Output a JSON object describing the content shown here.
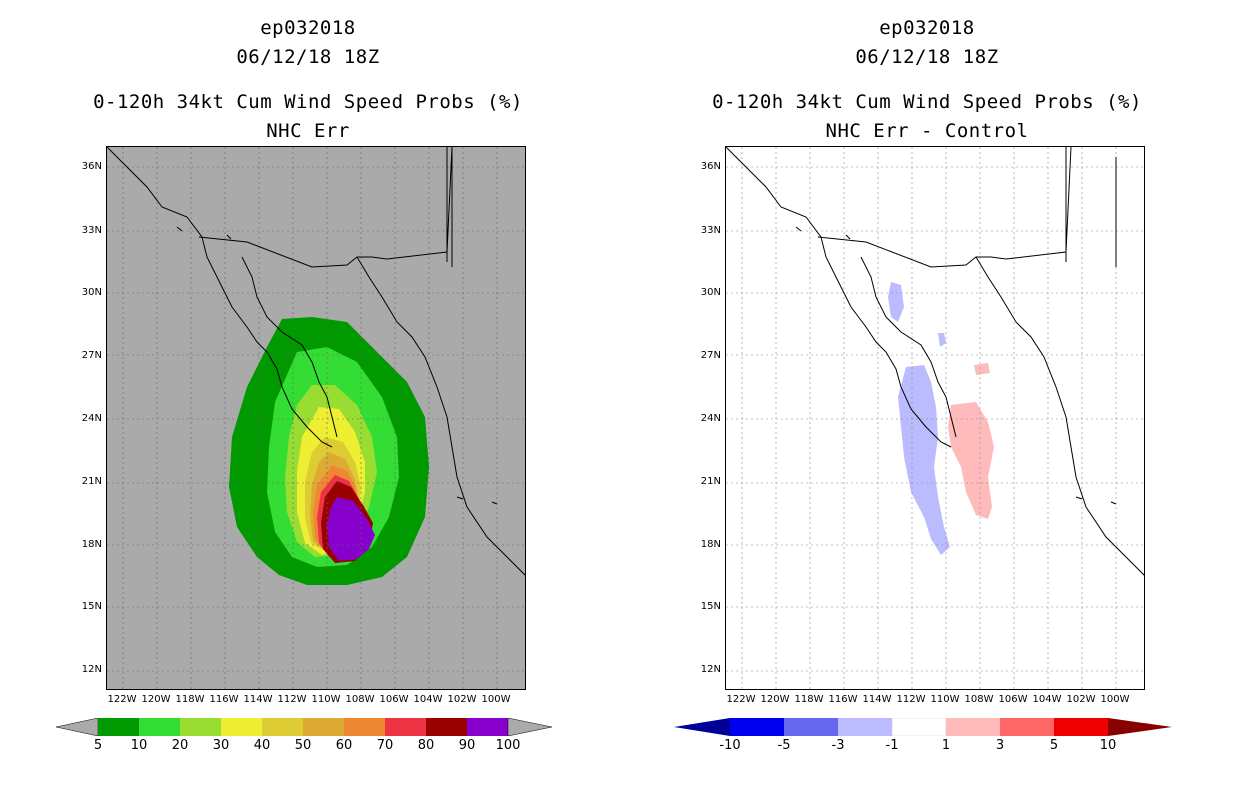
{
  "left": {
    "title1": "ep032018",
    "title2": "06/12/18 18Z",
    "title3": "0-120h 34kt Cum Wind Speed Probs (%)",
    "title4": "NHC Err",
    "colorbar": {
      "colors": [
        "#009900",
        "#33dd33",
        "#99dd33",
        "#eeee33",
        "#ddcc33",
        "#ddaa33",
        "#ee8833",
        "#ee3344",
        "#990000",
        "#8800cc"
      ],
      "labels": [
        "5",
        "10",
        "20",
        "30",
        "40",
        "50",
        "60",
        "70",
        "80",
        "90",
        "100"
      ]
    }
  },
  "right": {
    "title1": "ep032018",
    "title2": "06/12/18 18Z",
    "title3": "0-120h 34kt Cum Wind Speed Probs (%)",
    "title4": "NHC Err - Control",
    "colorbar": {
      "colors": [
        "#000099",
        "#0000ee",
        "#6666ee",
        "#bbbbff",
        "#ffffff",
        "#ffbbbb",
        "#ff6666",
        "#ee0000",
        "#880000"
      ],
      "labels": [
        "-10",
        "-5",
        "-3",
        "-1",
        "1",
        "3",
        "5",
        "10"
      ]
    }
  },
  "axes": {
    "lat_labels": [
      "36N",
      "33N",
      "30N",
      "27N",
      "24N",
      "21N",
      "18N",
      "15N",
      "12N"
    ],
    "lon_labels": [
      "122W",
      "120W",
      "118W",
      "116W",
      "114W",
      "112W",
      "110W",
      "108W",
      "106W",
      "104W",
      "102W",
      "100W"
    ]
  },
  "colors": {
    "ocean_left": "#aaaaaa",
    "ocean_right": "#ffffff",
    "coast": "#000000"
  }
}
